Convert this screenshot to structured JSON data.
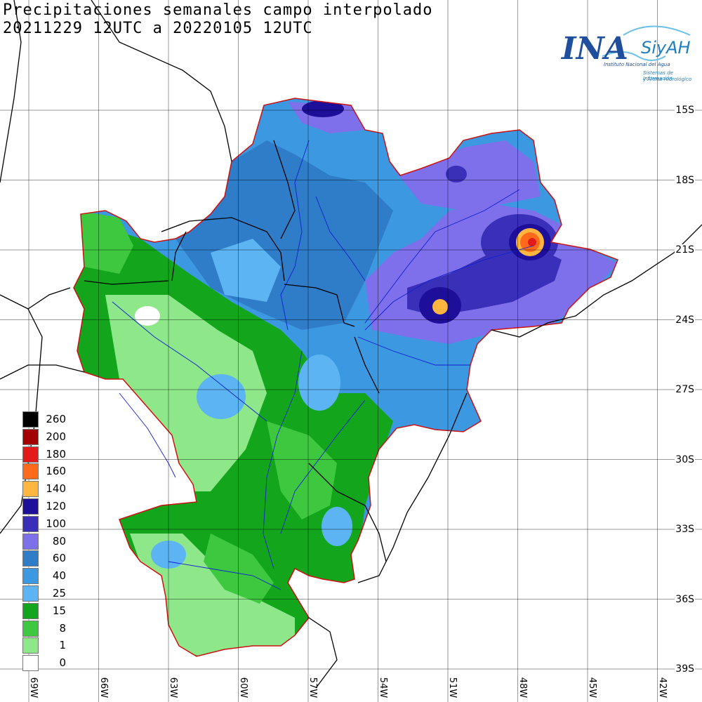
{
  "header": {
    "title_line_1": "Precipitaciones semanales campo interpolado",
    "title_line_2": "20211229 12UTC a 20220105 12UTC"
  },
  "logo": {
    "name": "INA",
    "product": "SiyAH",
    "institute": "Instituto Nacional del Agua",
    "subtitle_1": "Sistemas de Información",
    "subtitle_2": "y Alerta Hidrológico"
  },
  "axes": {
    "latitude_labels": [
      "15S",
      "18S",
      "21S",
      "24S",
      "27S",
      "30S",
      "33S",
      "36S",
      "39S"
    ],
    "longitude_labels": [
      "69W",
      "66W",
      "63W",
      "60W",
      "57W",
      "54W",
      "51W",
      "48W",
      "45W",
      "42W"
    ]
  },
  "legend": {
    "items": [
      {
        "label": "260",
        "color": "#000000"
      },
      {
        "label": "200",
        "color": "#a50000"
      },
      {
        "label": "180",
        "color": "#e41a1a"
      },
      {
        "label": "160",
        "color": "#ff6a1a"
      },
      {
        "label": "140",
        "color": "#ffb640"
      },
      {
        "label": "120",
        "color": "#1e0f9a"
      },
      {
        "label": "100",
        "color": "#3a2fb8"
      },
      {
        "label": "80",
        "color": "#7e70ea"
      },
      {
        "label": "60",
        "color": "#2f7cc8"
      },
      {
        "label": "40",
        "color": "#3c98e0"
      },
      {
        "label": "25",
        "color": "#5cb4f2"
      },
      {
        "label": "15",
        "color": "#13a61c"
      },
      {
        "label": "8",
        "color": "#3ec83f"
      },
      {
        "label": "1",
        "color": "#8ee88a"
      },
      {
        "label": "0",
        "color": "#ffffff"
      }
    ]
  },
  "colors": {
    "basin_outline": "#cc1111",
    "rivers": "#1020d0",
    "borders": "#000000",
    "grid": "#000000"
  }
}
